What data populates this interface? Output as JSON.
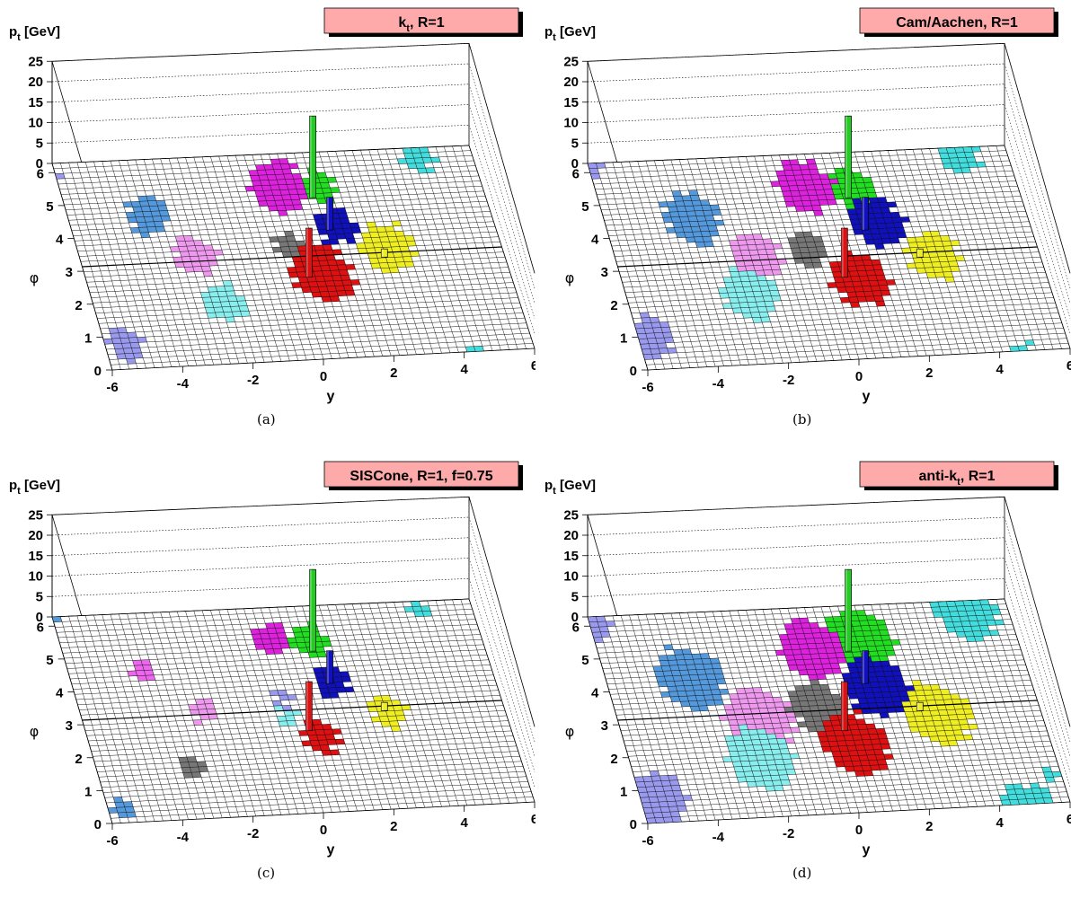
{
  "chart_data": [
    {
      "type": "lego3d",
      "title": "kt, R=1",
      "title_main": "k",
      "title_sub": "t",
      "title_rest": ", R=1",
      "caption": "(a)",
      "zlabel": "p",
      "zlabel_sub": "t",
      "zlabel_unit": " [GeV]",
      "xlabel": "y",
      "ylabel": "φ",
      "x_ticks": [
        "-6",
        "-4",
        "-2",
        "0",
        "2",
        "4",
        "6"
      ],
      "y_ticks": [
        "0",
        "1",
        "2",
        "3",
        "4",
        "5",
        "6"
      ],
      "z_ticks": [
        "0",
        "5",
        "10",
        "15",
        "20",
        "25"
      ],
      "xlim": [
        -6,
        6
      ],
      "ylim": [
        0,
        6.28
      ],
      "zlim": [
        0,
        25
      ],
      "hard_particles": [
        {
          "y": 1.1,
          "phi": 4.9,
          "pt": 20,
          "color": "#22cc22"
        },
        {
          "y": 1.3,
          "phi": 3.9,
          "pt": 8,
          "color": "#1111bb"
        },
        {
          "y": 0.3,
          "phi": 2.5,
          "pt": 12,
          "color": "#dd1111"
        },
        {
          "y": 2.6,
          "phi": 3.0,
          "pt": 2,
          "color": "#eeee22"
        }
      ],
      "jets": [
        {
          "color": "#22dd22",
          "y": 1.3,
          "phi": 5.2,
          "r": 0.5
        },
        {
          "color": "#dd22dd",
          "y": 0.2,
          "phi": 5.3,
          "r": 0.8
        },
        {
          "color": "#1111bb",
          "y": 1.5,
          "phi": 4.0,
          "r": 0.55
        },
        {
          "color": "#777777",
          "y": 0.0,
          "phi": 3.5,
          "r": 0.4
        },
        {
          "color": "#dd1111",
          "y": 0.7,
          "phi": 2.6,
          "r": 0.85
        },
        {
          "color": "#eeee22",
          "y": 2.8,
          "phi": 3.3,
          "r": 0.75
        },
        {
          "color": "#5599dd",
          "y": -3.7,
          "phi": 4.6,
          "r": 0.6
        },
        {
          "color": "#ee99ee",
          "y": -2.7,
          "phi": 3.3,
          "r": 0.6
        },
        {
          "color": "#88eeee",
          "y": -2.3,
          "phi": 1.9,
          "r": 0.6
        },
        {
          "color": "#9999ee",
          "y": -5.4,
          "phi": 0.8,
          "r": 0.5
        },
        {
          "color": "#44dddd",
          "y": 4.4,
          "phi": 6.0,
          "r": 0.45
        },
        {
          "color": "#9999ee",
          "y": -6.2,
          "phi": 6.1,
          "r": 0.3
        }
      ]
    },
    {
      "type": "lego3d",
      "title": "Cam/Aachen, R=1",
      "title_main": "Cam/Aachen, R=1",
      "title_sub": "",
      "title_rest": "",
      "caption": "(b)",
      "zlabel": "p",
      "zlabel_sub": "t",
      "zlabel_unit": " [GeV]",
      "xlabel": "y",
      "ylabel": "φ",
      "x_ticks": [
        "-6",
        "-4",
        "-2",
        "0",
        "2",
        "4",
        "6"
      ],
      "y_ticks": [
        "0",
        "1",
        "2",
        "3",
        "4",
        "5",
        "6"
      ],
      "z_ticks": [
        "0",
        "5",
        "10",
        "15",
        "20",
        "25"
      ],
      "xlim": [
        -6,
        6
      ],
      "ylim": [
        0,
        6.28
      ],
      "zlim": [
        0,
        25
      ],
      "hard_particles": [
        {
          "y": 1.1,
          "phi": 4.9,
          "pt": 20,
          "color": "#22cc22"
        },
        {
          "y": 1.3,
          "phi": 3.9,
          "pt": 8,
          "color": "#1111bb"
        },
        {
          "y": 0.3,
          "phi": 2.5,
          "pt": 12,
          "color": "#dd1111"
        },
        {
          "y": 2.6,
          "phi": 3.0,
          "pt": 2,
          "color": "#eeee22"
        }
      ],
      "jets": [
        {
          "color": "#22dd22",
          "y": 1.3,
          "phi": 5.2,
          "r": 0.6
        },
        {
          "color": "#dd22dd",
          "y": 0.0,
          "phi": 5.3,
          "r": 0.8
        },
        {
          "color": "#1111bb",
          "y": 1.7,
          "phi": 4.1,
          "r": 0.75
        },
        {
          "color": "#777777",
          "y": -0.5,
          "phi": 3.4,
          "r": 0.5
        },
        {
          "color": "#dd1111",
          "y": 0.7,
          "phi": 2.4,
          "r": 0.8
        },
        {
          "color": "#eeee22",
          "y": 3.0,
          "phi": 3.0,
          "r": 0.75
        },
        {
          "color": "#5599dd",
          "y": -3.5,
          "phi": 4.5,
          "r": 0.8
        },
        {
          "color": "#ee99ee",
          "y": -2.0,
          "phi": 3.3,
          "r": 0.65
        },
        {
          "color": "#88eeee",
          "y": -2.5,
          "phi": 2.1,
          "r": 0.8
        },
        {
          "color": "#9999ee",
          "y": -5.6,
          "phi": 1.0,
          "r": 0.6
        },
        {
          "color": "#44dddd",
          "y": 4.6,
          "phi": 6.0,
          "r": 0.55
        },
        {
          "color": "#9999ee",
          "y": -6.1,
          "phi": 6.1,
          "r": 0.4
        }
      ]
    },
    {
      "type": "lego3d",
      "title": "SISCone, R=1, f=0.75",
      "title_main": "SISCone, R=1, f=0.75",
      "title_sub": "",
      "title_rest": "",
      "caption": "(c)",
      "zlabel": "p",
      "zlabel_sub": "t",
      "zlabel_unit": " [GeV]",
      "xlabel": "y",
      "ylabel": "φ",
      "x_ticks": [
        "-6",
        "-4",
        "-2",
        "0",
        "2",
        "4",
        "6"
      ],
      "y_ticks": [
        "0",
        "1",
        "2",
        "3",
        "4",
        "5",
        "6"
      ],
      "z_ticks": [
        "0",
        "5",
        "10",
        "15",
        "20",
        "25"
      ],
      "xlim": [
        -6,
        6
      ],
      "ylim": [
        0,
        6.28
      ],
      "zlim": [
        0,
        25
      ],
      "hard_particles": [
        {
          "y": 1.1,
          "phi": 4.9,
          "pt": 20,
          "color": "#22cc22"
        },
        {
          "y": 1.3,
          "phi": 3.9,
          "pt": 8,
          "color": "#1111bb"
        },
        {
          "y": 0.3,
          "phi": 2.5,
          "pt": 12,
          "color": "#dd1111"
        },
        {
          "y": 2.6,
          "phi": 3.0,
          "pt": 2,
          "color": "#eeee22"
        }
      ],
      "jets": [
        {
          "color": "#22dd22",
          "y": 1.1,
          "phi": 5.2,
          "r": 0.5
        },
        {
          "color": "#dd22dd",
          "y": 0.0,
          "phi": 5.3,
          "r": 0.5
        },
        {
          "color": "#1111bb",
          "y": 1.4,
          "phi": 4.0,
          "r": 0.5
        },
        {
          "color": "#9999ee",
          "y": -0.1,
          "phi": 3.6,
          "r": 0.3
        },
        {
          "color": "#88eeee",
          "y": -0.2,
          "phi": 2.9,
          "r": 0.3
        },
        {
          "color": "#dd1111",
          "y": 0.6,
          "phi": 2.3,
          "r": 0.5
        },
        {
          "color": "#eeee22",
          "y": 2.7,
          "phi": 3.0,
          "r": 0.5
        },
        {
          "color": "#ee66ee",
          "y": -3.9,
          "phi": 4.6,
          "r": 0.35
        },
        {
          "color": "#ee99ee",
          "y": -2.5,
          "phi": 3.2,
          "r": 0.35
        },
        {
          "color": "#777777",
          "y": -3.3,
          "phi": 1.6,
          "r": 0.35
        },
        {
          "color": "#5599dd",
          "y": -5.6,
          "phi": 0.4,
          "r": 0.3
        },
        {
          "color": "#44dddd",
          "y": 4.5,
          "phi": 6.0,
          "r": 0.3
        },
        {
          "color": "#5599dd",
          "y": -6.0,
          "phi": 6.1,
          "r": 0.2
        }
      ]
    },
    {
      "type": "lego3d",
      "title": "anti-kt, R=1",
      "title_main": "anti-k",
      "title_sub": "t",
      "title_rest": ", R=1",
      "caption": "(d)",
      "zlabel": "p",
      "zlabel_sub": "t",
      "zlabel_unit": " [GeV]",
      "xlabel": "y",
      "ylabel": "φ",
      "x_ticks": [
        "-6",
        "-4",
        "-2",
        "0",
        "2",
        "4",
        "6"
      ],
      "y_ticks": [
        "0",
        "1",
        "2",
        "3",
        "4",
        "5",
        "6"
      ],
      "z_ticks": [
        "0",
        "5",
        "10",
        "15",
        "20",
        "25"
      ],
      "xlim": [
        -6,
        6
      ],
      "ylim": [
        0,
        6.28
      ],
      "zlim": [
        0,
        25
      ],
      "hard_particles": [
        {
          "y": 1.1,
          "phi": 4.9,
          "pt": 20,
          "color": "#22cc22"
        },
        {
          "y": 1.3,
          "phi": 3.9,
          "pt": 8,
          "color": "#1111bb"
        },
        {
          "y": 0.3,
          "phi": 2.5,
          "pt": 12,
          "color": "#dd1111"
        },
        {
          "y": 2.6,
          "phi": 3.0,
          "pt": 2,
          "color": "#eeee22"
        }
      ],
      "jets": [
        {
          "color": "#22dd22",
          "y": 1.5,
          "phi": 5.2,
          "r": 0.95
        },
        {
          "color": "#dd22dd",
          "y": 0.1,
          "phi": 5.0,
          "r": 0.9
        },
        {
          "color": "#1111bb",
          "y": 1.6,
          "phi": 3.8,
          "r": 0.9
        },
        {
          "color": "#777777",
          "y": -0.3,
          "phi": 3.3,
          "r": 0.75
        },
        {
          "color": "#dd1111",
          "y": 0.5,
          "phi": 2.1,
          "r": 0.95
        },
        {
          "color": "#eeee22",
          "y": 3.1,
          "phi": 2.9,
          "r": 0.95
        },
        {
          "color": "#5599dd",
          "y": -3.6,
          "phi": 4.3,
          "r": 0.95
        },
        {
          "color": "#ee99ee",
          "y": -2.0,
          "phi": 3.0,
          "r": 0.95
        },
        {
          "color": "#88eeee",
          "y": -2.3,
          "phi": 1.8,
          "r": 0.95
        },
        {
          "color": "#9999ee",
          "y": -5.4,
          "phi": 0.8,
          "r": 0.7
        },
        {
          "color": "#44dddd",
          "y": 4.8,
          "phi": 6.0,
          "r": 0.9
        },
        {
          "color": "#9999ee",
          "y": -6.0,
          "phi": 6.1,
          "r": 0.6
        },
        {
          "color": "#44dddd",
          "y": 5.7,
          "phi": 0.8,
          "r": 0.2
        }
      ]
    }
  ]
}
